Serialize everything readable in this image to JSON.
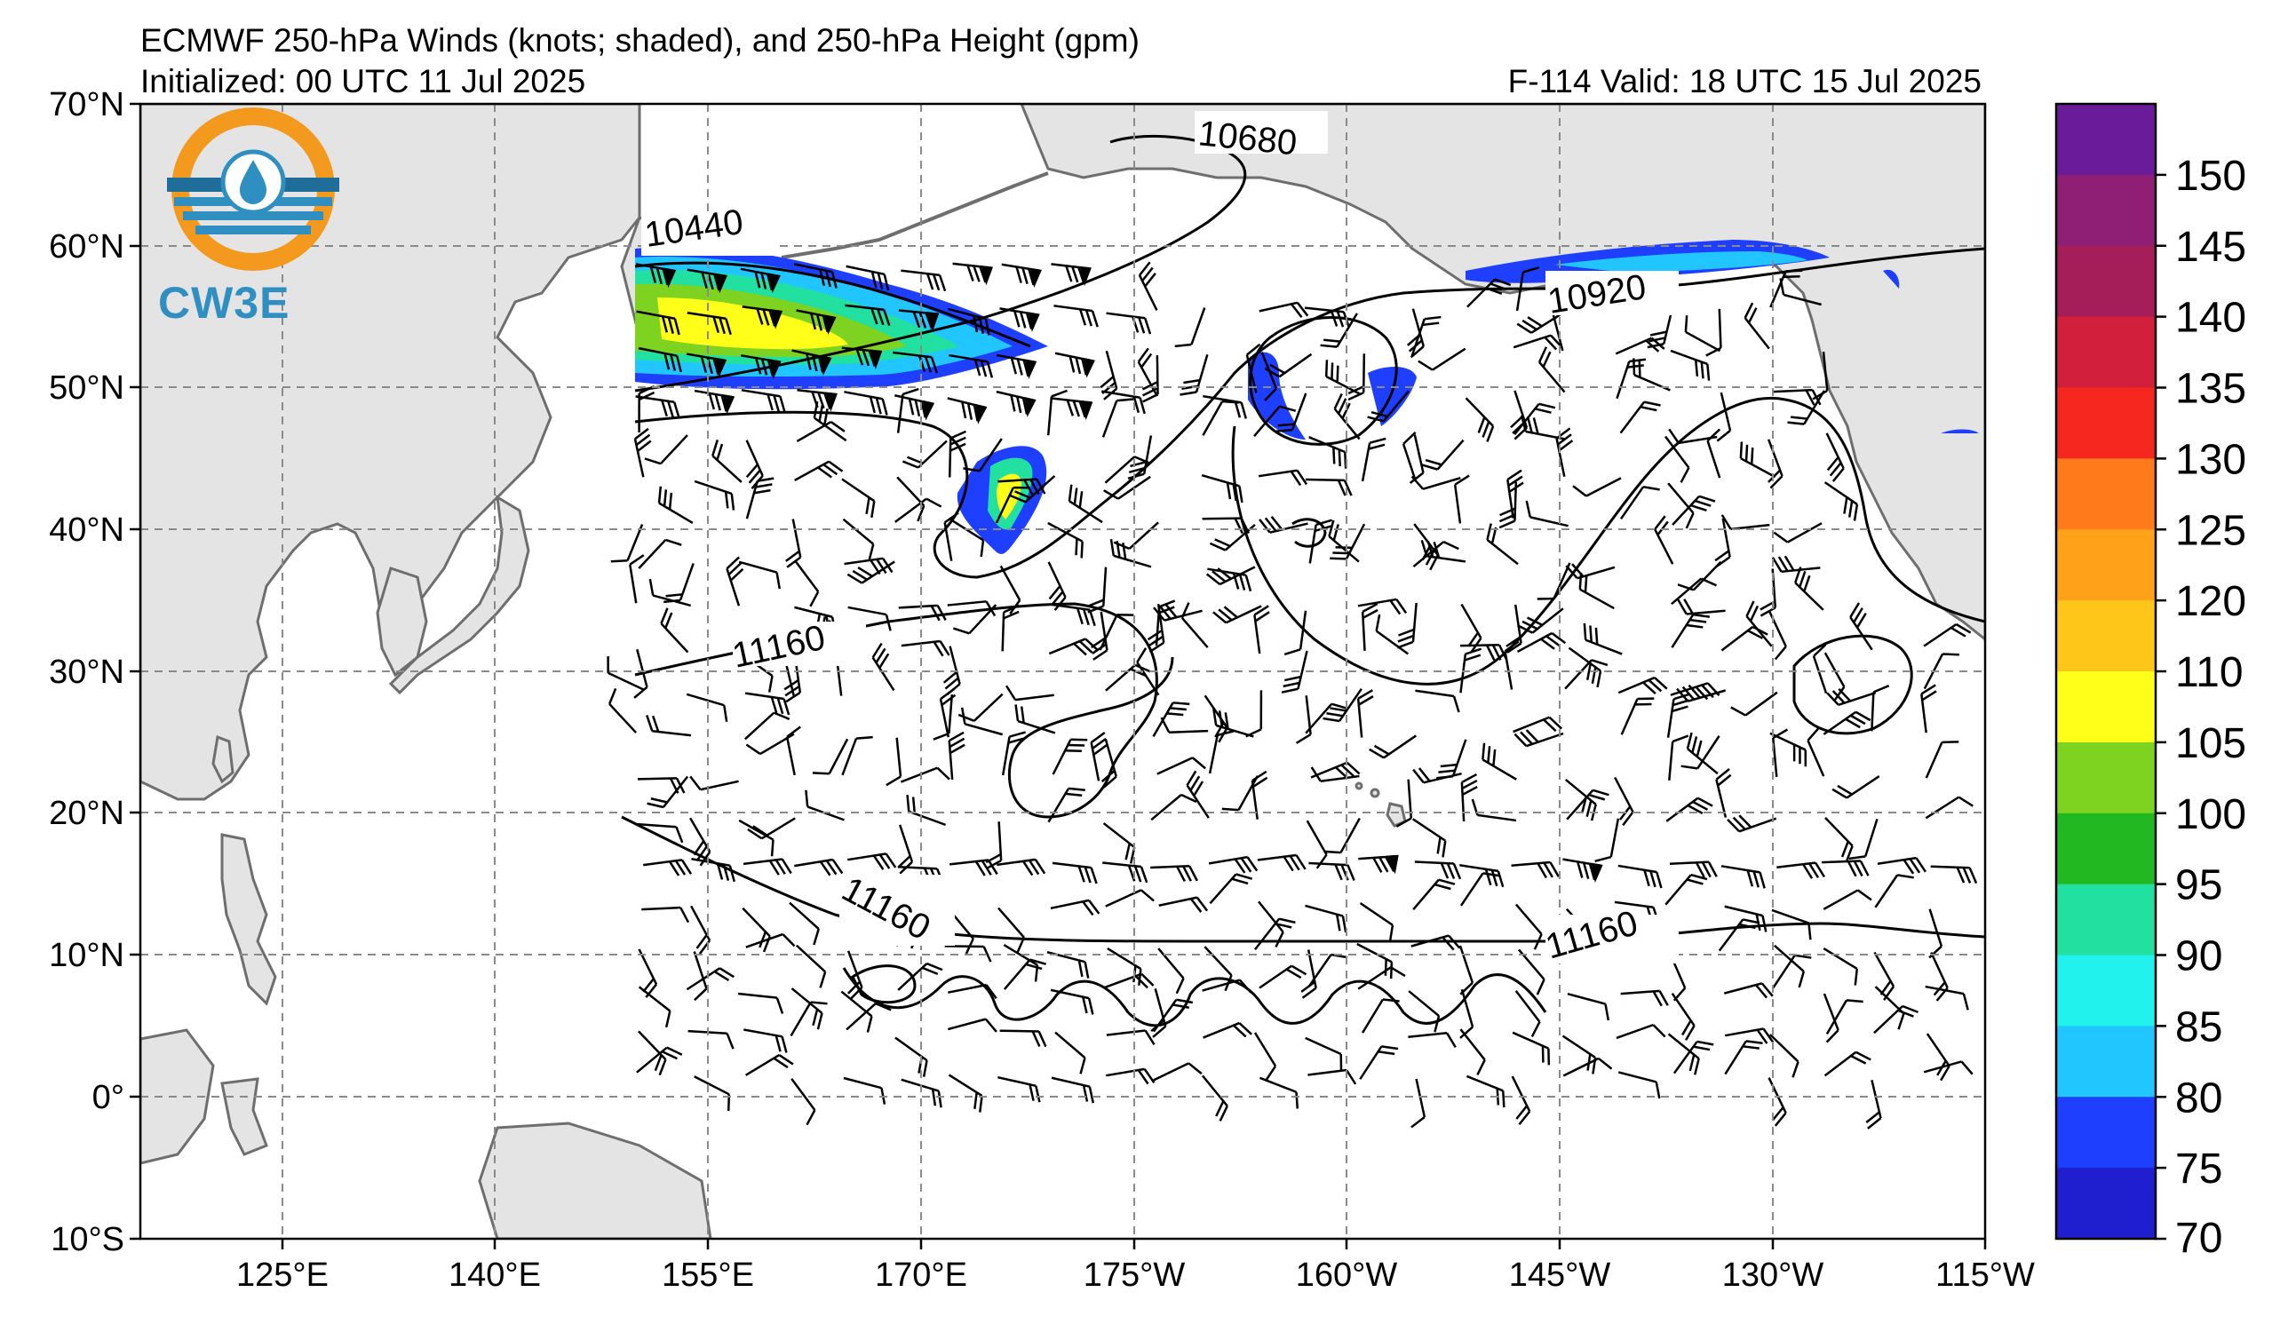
{
  "header": {
    "title": "ECMWF 250-hPa Winds (knots; shaded), and 250-hPa Height (gpm)",
    "initialized": "Initialized: 00 UTC 11 Jul 2025",
    "valid": "F-114  Valid: 18 UTC 15 Jul 2025"
  },
  "logo": {
    "text": "CW3E"
  },
  "axes": {
    "lat_labels": [
      "70°N",
      "60°N",
      "50°N",
      "40°N",
      "30°N",
      "20°N",
      "10°N",
      "0°",
      "10°S"
    ],
    "lon_labels": [
      "125°E",
      "140°E",
      "155°E",
      "170°E",
      "175°W",
      "160°W",
      "145°W",
      "130°W",
      "115°W"
    ]
  },
  "colorbar": {
    "labels": [
      "150",
      "145",
      "140",
      "135",
      "130",
      "125",
      "120",
      "110",
      "105",
      "100",
      "95",
      "90",
      "85",
      "80",
      "75",
      "70"
    ],
    "colors": [
      "#6a1b9a",
      "#8e1f74",
      "#a51d59",
      "#d21f3c",
      "#f5271f",
      "#ff7a1a",
      "#ffa21a",
      "#ffc61a",
      "#ffff1a",
      "#7ed321",
      "#21b821",
      "#21e0a0",
      "#21f2ee",
      "#21c5ff",
      "#1f3fff",
      "#1f1fcf"
    ]
  },
  "contour_labels": {
    "c1": "10680",
    "c2": "10440",
    "c3": "10920",
    "c4": "11160",
    "c5": "11160",
    "c6": "11160"
  },
  "colors": {
    "land": "#e4e4e4",
    "ocean": "#ffffff",
    "grid": "#8a8a8a",
    "coast": "#6e6e6e"
  }
}
